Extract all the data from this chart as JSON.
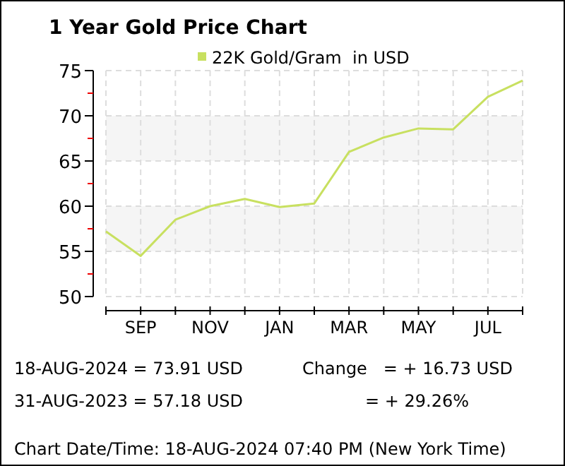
{
  "chart_data": {
    "type": "line",
    "title": "1 Year Gold Price Chart",
    "categories": [
      null,
      "SEP",
      null,
      "NOV",
      null,
      "JAN",
      null,
      "MAR",
      null,
      "MAY",
      null,
      "JUL",
      null
    ],
    "series": [
      {
        "name": "22K Gold/Gram  in USD",
        "color": "#c8e060",
        "values": [
          57.2,
          54.5,
          58.5,
          60.0,
          60.8,
          59.9,
          60.3,
          66.0,
          67.6,
          68.6,
          68.5,
          72.1,
          73.9
        ]
      }
    ],
    "ylim": [
      50,
      75
    ],
    "yticks": [
      50,
      {
        "value": 52.5,
        "label": null
      },
      55,
      {
        "value": 57.5,
        "label": null
      },
      60,
      {
        "value": 62.5,
        "label": null
      },
      65,
      {
        "value": 67.5,
        "label": null
      },
      70,
      {
        "value": 72.5,
        "label": null
      },
      75
    ],
    "bands": [
      {
        "axis": "y",
        "from": 55,
        "to": 60,
        "color": "#f5f5f5"
      },
      {
        "axis": "y",
        "from": 65,
        "to": 70,
        "color": "#f5f5f5"
      }
    ],
    "grid": true,
    "legend": "top",
    "annotations": [
      "18-AUG-2024 = 73.91 USD",
      "31-AUG-2023 = 57.18 USD",
      "Change   = + 16.73 USD",
      "= + 29.26%",
      "Chart Date/Time: 18-AUG-2024 07:40 PM (New York Time)"
    ]
  }
}
